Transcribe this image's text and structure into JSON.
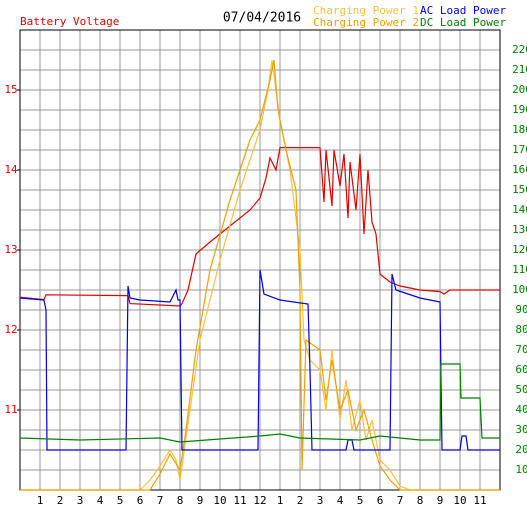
{
  "chart_data": {
    "type": "line",
    "title": "07/04/2016",
    "y_label": "Battery Voltage",
    "xlim": [
      0,
      24
    ],
    "xticks": [
      1,
      2,
      3,
      4,
      5,
      6,
      7,
      8,
      9,
      10,
      11,
      12,
      {
        "value": 13,
        "label": "1"
      },
      {
        "value": 14,
        "label": "2"
      },
      {
        "value": 15,
        "label": "3"
      },
      {
        "value": 16,
        "label": "4"
      },
      {
        "value": 17,
        "label": "5"
      },
      {
        "value": 18,
        "label": "6"
      },
      {
        "value": 19,
        "label": "7"
      },
      {
        "value": 20,
        "label": "8"
      },
      {
        "value": 21,
        "label": "9"
      },
      {
        "value": 22,
        "label": "10"
      },
      {
        "value": 23,
        "label": "11"
      }
    ],
    "ylim": [
      10,
      15.75
    ],
    "yticks": [
      11,
      12,
      13,
      14,
      15
    ],
    "y2lim": [
      0,
      230
    ],
    "y2ticks": [
      10,
      20,
      30,
      40,
      50,
      60,
      70,
      80,
      90,
      100,
      110,
      120,
      130,
      140,
      150,
      160,
      170,
      180,
      190,
      200,
      210,
      220
    ],
    "grid": true,
    "series": [
      {
        "name": "Battery Voltage",
        "color": "#e00000",
        "axis": "y",
        "x": [
          0,
          1.2,
          1.3,
          5.4,
          5.5,
          8,
          8.1,
          8.4,
          8.8,
          9.5,
          10.5,
          11.5,
          12,
          12.3,
          12.5,
          12.8,
          13,
          15,
          15.2,
          15.3,
          15.6,
          15.7,
          16,
          16.2,
          16.4,
          16.5,
          16.8,
          17,
          17.2,
          17.4,
          17.6,
          17.8,
          18,
          18.5,
          19,
          20,
          21,
          21.2,
          21.5,
          24
        ],
        "values": [
          12.41,
          12.38,
          12.44,
          12.43,
          12.33,
          12.3,
          12.33,
          12.5,
          12.95,
          13.1,
          13.3,
          13.5,
          13.65,
          13.9,
          14.15,
          14.0,
          14.28,
          14.28,
          13.6,
          14.25,
          13.55,
          14.25,
          13.8,
          14.2,
          13.4,
          14.1,
          13.5,
          14.2,
          13.2,
          14.0,
          13.35,
          13.2,
          12.7,
          12.6,
          12.55,
          12.5,
          12.48,
          12.45,
          12.5,
          12.5
        ]
      },
      {
        "name": "Charging Power 1",
        "color": "#f5c040",
        "axis": "y2",
        "x": [
          0,
          6,
          6.5,
          7,
          7.5,
          7.8,
          8,
          8.5,
          9,
          10,
          11,
          12,
          12.4,
          12.6,
          12.8,
          13,
          13.5,
          14,
          14.2,
          14.5,
          15,
          15.3,
          15.6,
          16,
          16.3,
          16.6,
          17,
          17.3,
          17.6,
          18,
          18.5,
          19,
          19.5,
          24
        ],
        "values": [
          0,
          0,
          5,
          12,
          20,
          15,
          5,
          40,
          75,
          115,
          150,
          180,
          200,
          215,
          200,
          185,
          160,
          120,
          75,
          65,
          60,
          40,
          70,
          35,
          55,
          30,
          45,
          25,
          35,
          15,
          10,
          2,
          0,
          0
        ]
      },
      {
        "name": "Charging Power 2",
        "color": "#f0a000",
        "axis": "y2",
        "x": [
          0,
          6.5,
          7,
          7.5,
          8,
          8.3,
          8.8,
          9.5,
          10.5,
          11.5,
          12,
          12.5,
          12.7,
          12.9,
          13.3,
          13.8,
          14,
          14.1,
          14.3,
          15,
          15.3,
          15.6,
          16,
          16.4,
          16.8,
          17.2,
          17.6,
          18,
          18.5,
          19,
          24
        ],
        "values": [
          0,
          0,
          8,
          18,
          10,
          30,
          70,
          110,
          145,
          175,
          185,
          205,
          215,
          190,
          170,
          150,
          100,
          10,
          75,
          70,
          45,
          65,
          40,
          50,
          30,
          40,
          25,
          12,
          5,
          0,
          0
        ]
      },
      {
        "name": "AC Load Power",
        "color": "#0000e0",
        "axis": "y2",
        "x": [
          0,
          1.2,
          1.3,
          1.35,
          5.3,
          5.4,
          5.5,
          6,
          7.5,
          7.8,
          7.9,
          8,
          8.1,
          11.9,
          12,
          12.2,
          13,
          14.4,
          14.5,
          14.6,
          16.3,
          16.4,
          16.6,
          16.7,
          18.5,
          18.6,
          18.8,
          20,
          21,
          21.1,
          21.2,
          22,
          22.1,
          22.3,
          22.4,
          24
        ],
        "values": [
          96,
          95,
          90,
          20,
          20,
          102,
          96,
          95,
          94,
          100,
          95,
          95,
          20,
          20,
          110,
          98,
          95,
          93,
          60,
          20,
          20,
          25,
          25,
          20,
          20,
          108,
          100,
          96,
          94,
          20,
          20,
          20,
          27,
          27,
          20,
          20
        ]
      },
      {
        "name": "DC Load Power",
        "color": "#008000",
        "axis": "y2",
        "x": [
          0,
          3,
          7,
          8,
          12,
          13,
          14,
          17,
          18,
          20,
          21,
          21.05,
          22,
          22.05,
          23,
          23.1,
          24
        ],
        "values": [
          26,
          25,
          26,
          24,
          27,
          28,
          26,
          25,
          27,
          25,
          25,
          63,
          63,
          46,
          46,
          26,
          26
        ]
      }
    ]
  }
}
